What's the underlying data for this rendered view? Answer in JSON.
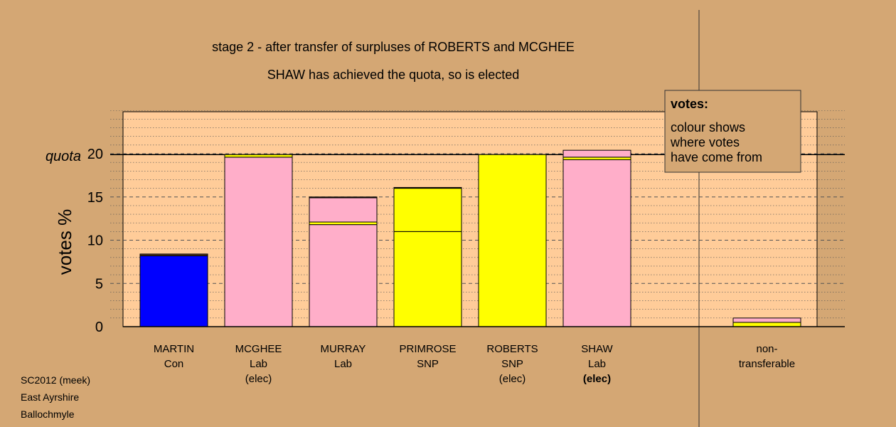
{
  "title_line1": "stage 2 - after transfer of surpluses of ROBERTS and MCGHEE",
  "title_line2": "SHAW has achieved the quota, so is elected",
  "ylabel": "votes %",
  "quota_label": "quota",
  "legend": {
    "heading": "votes:",
    "lines": [
      "colour shows",
      "where votes",
      "have come from"
    ]
  },
  "footer": [
    "SC2012 (meek)",
    "East Ayrshire",
    "Ballochmyle"
  ],
  "colors": {
    "background": "#d4a774",
    "plot_area": "#ffcc99",
    "Con": "#0000ff",
    "Lab": "#ffaec9",
    "SNP": "#ffff00",
    "dark_segment": "#5a3a20"
  },
  "chart_data": {
    "type": "bar",
    "stacked": true,
    "ylim": [
      0,
      25
    ],
    "yticks": [
      0,
      5,
      10,
      15,
      20
    ],
    "quota": 19.9,
    "categories": [
      {
        "name": "MARTIN",
        "party": "Con",
        "status": "",
        "status_bold": false,
        "segments": [
          {
            "value": 8.2,
            "color": "Con"
          },
          {
            "value": 0.2,
            "color": "dark_segment"
          }
        ]
      },
      {
        "name": "MCGHEE",
        "party": "Lab",
        "status": "(elec)",
        "status_bold": false,
        "segments": [
          {
            "value": 19.6,
            "color": "Lab"
          },
          {
            "value": 0.3,
            "color": "SNP"
          }
        ]
      },
      {
        "name": "MURRAY",
        "party": "Lab",
        "status": "",
        "status_bold": false,
        "segments": [
          {
            "value": 11.8,
            "color": "Lab"
          },
          {
            "value": 0.3,
            "color": "SNP"
          },
          {
            "value": 2.8,
            "color": "Lab"
          },
          {
            "value": 0.1,
            "color": "dark_segment"
          }
        ]
      },
      {
        "name": "PRIMROSE",
        "party": "SNP",
        "status": "",
        "status_bold": false,
        "segments": [
          {
            "value": 11.0,
            "color": "SNP"
          },
          {
            "value": 5.0,
            "color": "SNP"
          },
          {
            "value": 0.1,
            "color": "dark_segment"
          }
        ]
      },
      {
        "name": "ROBERTS",
        "party": "SNP",
        "status": "(elec)",
        "status_bold": false,
        "segments": [
          {
            "value": 19.9,
            "color": "SNP"
          }
        ]
      },
      {
        "name": "SHAW",
        "party": "Lab",
        "status": "(elec)",
        "status_bold": true,
        "segments": [
          {
            "value": 19.3,
            "color": "Lab"
          },
          {
            "value": 0.3,
            "color": "SNP"
          },
          {
            "value": 0.8,
            "color": "Lab"
          }
        ]
      }
    ],
    "nontransferable": {
      "label_line1": "non-",
      "label_line2": "transferable",
      "segments": [
        {
          "value": 0.5,
          "color": "SNP"
        },
        {
          "value": 0.5,
          "color": "Lab"
        }
      ]
    }
  }
}
